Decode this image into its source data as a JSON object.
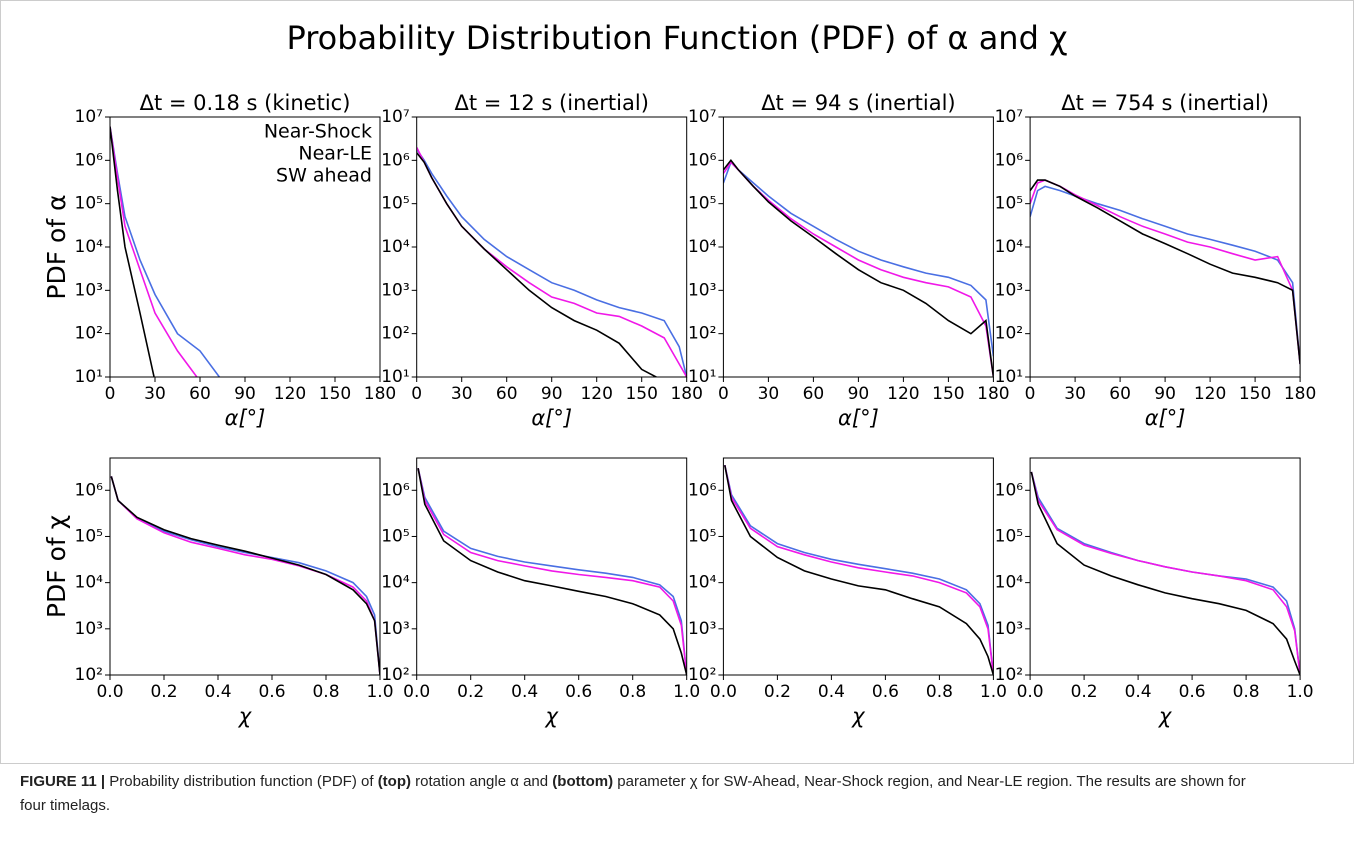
{
  "figure_title": "Probability Distribution Function (PDF) of α and χ",
  "caption": [
    {
      "text": "FIGURE 11 |",
      "bold": true
    },
    {
      "text": " Probability distribution function (PDF) of "
    },
    {
      "text": "(top)",
      "bold": true
    },
    {
      "text": " rotation angle α and "
    },
    {
      "text": "(bottom)",
      "bold": true
    },
    {
      "text": " parameter χ for SW-Ahead, Near-Shock region, and Near-LE region. The results are shown for four timelags."
    }
  ],
  "chart_data": [
    {
      "type": "line",
      "title": "Δt = 0.18 s (kinetic)",
      "xlabel": "α[°]",
      "ylabel": "PDF of α",
      "yscale": "log",
      "grid": false,
      "legend": "upper right",
      "x": [
        0,
        5,
        10,
        20,
        30,
        45,
        60,
        75,
        90,
        105,
        120,
        135,
        150,
        165,
        175,
        180
      ],
      "series": [
        {
          "name": "Near-Shock",
          "color": "#4a6fe3",
          "values": [
            6000000,
            500000,
            50000,
            5000,
            800,
            100,
            40,
            8,
            null,
            null,
            null,
            null,
            null,
            null,
            null,
            null
          ]
        },
        {
          "name": "Near-LE",
          "color": "#f018e8",
          "values": [
            6000000,
            400000,
            30000,
            3000,
            300,
            40,
            8,
            null,
            null,
            null,
            null,
            null,
            null,
            null,
            null,
            null
          ]
        },
        {
          "name": "SW ahead",
          "color": "#000000",
          "values": [
            6000000,
            200000,
            10000,
            300,
            8,
            null,
            null,
            null,
            null,
            null,
            null,
            null,
            null,
            null,
            null,
            null
          ]
        }
      ],
      "xlim": [
        0,
        180
      ],
      "xticks": [
        0,
        30,
        60,
        90,
        120,
        150,
        180
      ],
      "ylim": [
        10,
        10000000
      ],
      "yticks": [
        {
          "value": 10,
          "label": "10¹"
        },
        {
          "value": 100,
          "label": "10²"
        },
        {
          "value": 1000,
          "label": "10³"
        },
        {
          "value": 10000,
          "label": "10⁴"
        },
        {
          "value": 100000,
          "label": "10⁵"
        },
        {
          "value": 1000000,
          "label": "10⁶"
        },
        {
          "value": 10000000,
          "label": "10⁷"
        }
      ]
    },
    {
      "type": "line",
      "title": "Δt = 12 s (inertial)",
      "xlabel": "α[°]",
      "yscale": "log",
      "grid": false,
      "x": [
        0,
        5,
        10,
        20,
        30,
        45,
        60,
        75,
        90,
        105,
        120,
        135,
        150,
        165,
        175,
        180
      ],
      "series": [
        {
          "name": "Near-Shock",
          "color": "#4a6fe3",
          "values": [
            1800000,
            1000000,
            500000,
            150000,
            50000,
            15000,
            6000,
            3000,
            1500,
            1000,
            600,
            400,
            300,
            200,
            50,
            10
          ]
        },
        {
          "name": "Near-LE",
          "color": "#f018e8",
          "values": [
            2000000,
            900000,
            400000,
            100000,
            30000,
            9000,
            3500,
            1500,
            700,
            500,
            300,
            250,
            150,
            80,
            20,
            10
          ]
        },
        {
          "name": "SW ahead",
          "color": "#000000",
          "values": [
            1500000,
            900000,
            400000,
            100000,
            30000,
            9000,
            3000,
            1000,
            400,
            200,
            120,
            60,
            15,
            8,
            null,
            null
          ]
        }
      ],
      "xlim": [
        0,
        180
      ],
      "xticks": [
        0,
        30,
        60,
        90,
        120,
        150,
        180
      ],
      "ylim": [
        10,
        10000000
      ],
      "yticks": [
        {
          "value": 10,
          "label": "10¹"
        },
        {
          "value": 100,
          "label": "10²"
        },
        {
          "value": 1000,
          "label": "10³"
        },
        {
          "value": 10000,
          "label": "10⁴"
        },
        {
          "value": 100000,
          "label": "10⁵"
        },
        {
          "value": 1000000,
          "label": "10⁶"
        },
        {
          "value": 10000000,
          "label": "10⁷"
        }
      ]
    },
    {
      "type": "line",
      "title": "Δt = 94 s (inertial)",
      "xlabel": "α[°]",
      "yscale": "log",
      "grid": false,
      "x": [
        0,
        5,
        10,
        20,
        30,
        45,
        60,
        75,
        90,
        105,
        120,
        135,
        150,
        165,
        175,
        180
      ],
      "series": [
        {
          "name": "Near-Shock",
          "color": "#4a6fe3",
          "values": [
            300000,
            900000,
            600000,
            300000,
            150000,
            60000,
            30000,
            15000,
            8000,
            5000,
            3500,
            2500,
            2000,
            1300,
            600,
            30
          ]
        },
        {
          "name": "Near-LE",
          "color": "#f018e8",
          "values": [
            500000,
            900000,
            600000,
            250000,
            120000,
            45000,
            20000,
            10000,
            5000,
            3000,
            2000,
            1500,
            1200,
            700,
            150,
            10
          ]
        },
        {
          "name": "SW ahead",
          "color": "#000000",
          "values": [
            600000,
            1000000,
            600000,
            250000,
            110000,
            40000,
            17000,
            7000,
            3000,
            1500,
            1000,
            500,
            200,
            100,
            200,
            10
          ]
        }
      ],
      "xlim": [
        0,
        180
      ],
      "xticks": [
        0,
        30,
        60,
        90,
        120,
        150,
        180
      ],
      "ylim": [
        10,
        10000000
      ],
      "yticks": [
        {
          "value": 10,
          "label": "10¹"
        },
        {
          "value": 100,
          "label": "10²"
        },
        {
          "value": 1000,
          "label": "10³"
        },
        {
          "value": 10000,
          "label": "10⁴"
        },
        {
          "value": 100000,
          "label": "10⁵"
        },
        {
          "value": 1000000,
          "label": "10⁶"
        },
        {
          "value": 10000000,
          "label": "10⁷"
        }
      ]
    },
    {
      "type": "line",
      "title": "Δt = 754 s (inertial)",
      "xlabel": "α[°]",
      "yscale": "log",
      "grid": false,
      "x": [
        0,
        5,
        10,
        20,
        30,
        45,
        60,
        75,
        90,
        105,
        120,
        135,
        150,
        165,
        175,
        180
      ],
      "series": [
        {
          "name": "Near-Shock",
          "color": "#4a6fe3",
          "values": [
            50000,
            200000,
            250000,
            200000,
            150000,
            100000,
            70000,
            45000,
            30000,
            20000,
            15000,
            11000,
            8000,
            5000,
            1500,
            20
          ]
        },
        {
          "name": "Near-LE",
          "color": "#f018e8",
          "values": [
            100000,
            300000,
            350000,
            250000,
            160000,
            90000,
            50000,
            30000,
            20000,
            13000,
            10000,
            7000,
            5000,
            6000,
            1000,
            20
          ]
        },
        {
          "name": "SW ahead",
          "color": "#000000",
          "values": [
            200000,
            350000,
            350000,
            250000,
            150000,
            80000,
            40000,
            20000,
            12000,
            7000,
            4000,
            2500,
            2000,
            1500,
            1000,
            20
          ]
        }
      ],
      "xlim": [
        0,
        180
      ],
      "xticks": [
        0,
        30,
        60,
        90,
        120,
        150,
        180
      ],
      "ylim": [
        10,
        10000000
      ],
      "yticks": [
        {
          "value": 10,
          "label": "10¹"
        },
        {
          "value": 100,
          "label": "10²"
        },
        {
          "value": 1000,
          "label": "10³"
        },
        {
          "value": 10000,
          "label": "10⁴"
        },
        {
          "value": 100000,
          "label": "10⁵"
        },
        {
          "value": 1000000,
          "label": "10⁶"
        },
        {
          "value": 10000000,
          "label": "10⁷"
        }
      ]
    },
    {
      "type": "line",
      "xlabel": "χ",
      "ylabel": "PDF of χ",
      "yscale": "log",
      "grid": false,
      "x": [
        0.005,
        0.03,
        0.1,
        0.2,
        0.3,
        0.4,
        0.5,
        0.6,
        0.7,
        0.8,
        0.9,
        0.95,
        0.98,
        1.0
      ],
      "series": [
        {
          "name": "Near-Shock",
          "color": "#4a6fe3",
          "values": [
            2000000,
            600000,
            250000,
            130000,
            85000,
            60000,
            45000,
            35000,
            27000,
            18000,
            10000,
            5000,
            2000,
            100
          ]
        },
        {
          "name": "Near-LE",
          "color": "#f018e8",
          "values": [
            2000000,
            600000,
            240000,
            120000,
            75000,
            55000,
            40000,
            32000,
            23000,
            15000,
            8000,
            4000,
            1500,
            100
          ]
        },
        {
          "name": "SW ahead",
          "color": "#000000",
          "values": [
            2000000,
            600000,
            260000,
            140000,
            90000,
            65000,
            48000,
            34000,
            24000,
            15000,
            7000,
            3500,
            1500,
            100
          ]
        }
      ],
      "xlim": [
        0,
        1
      ],
      "xticks": [
        {
          "value": 0,
          "label": "0.0"
        },
        0.2,
        0.4,
        0.6,
        0.8,
        {
          "value": 1,
          "label": "1.0"
        }
      ],
      "ylim": [
        100,
        5000000
      ],
      "yticks": [
        {
          "value": 100,
          "label": "10²"
        },
        {
          "value": 1000,
          "label": "10³"
        },
        {
          "value": 10000,
          "label": "10⁴"
        },
        {
          "value": 100000,
          "label": "10⁵"
        },
        {
          "value": 1000000,
          "label": "10⁶"
        }
      ]
    },
    {
      "type": "line",
      "xlabel": "χ",
      "yscale": "log",
      "grid": false,
      "x": [
        0.005,
        0.03,
        0.1,
        0.2,
        0.3,
        0.4,
        0.5,
        0.6,
        0.7,
        0.8,
        0.9,
        0.95,
        0.98,
        1.0
      ],
      "series": [
        {
          "name": "Near-Shock",
          "color": "#4a6fe3",
          "values": [
            3000000,
            700000,
            130000,
            55000,
            37000,
            28000,
            23000,
            19000,
            16000,
            13000,
            9000,
            5000,
            1500,
            100
          ]
        },
        {
          "name": "Near-LE",
          "color": "#f018e8",
          "values": [
            3000000,
            600000,
            110000,
            45000,
            30000,
            23000,
            18000,
            15000,
            13000,
            11000,
            8000,
            4000,
            1200,
            100
          ]
        },
        {
          "name": "SW ahead",
          "color": "#000000",
          "values": [
            3000000,
            500000,
            80000,
            30000,
            17000,
            11000,
            8500,
            6500,
            5000,
            3500,
            2000,
            1000,
            300,
            100
          ]
        }
      ],
      "xlim": [
        0,
        1
      ],
      "xticks": [
        {
          "value": 0,
          "label": "0.0"
        },
        0.2,
        0.4,
        0.6,
        0.8,
        {
          "value": 1,
          "label": "1.0"
        }
      ],
      "ylim": [
        100,
        5000000
      ],
      "yticks": [
        {
          "value": 100,
          "label": "10²"
        },
        {
          "value": 1000,
          "label": "10³"
        },
        {
          "value": 10000,
          "label": "10⁴"
        },
        {
          "value": 100000,
          "label": "10⁵"
        },
        {
          "value": 1000000,
          "label": "10⁶"
        }
      ]
    },
    {
      "type": "line",
      "xlabel": "χ",
      "yscale": "log",
      "grid": false,
      "x": [
        0.005,
        0.03,
        0.1,
        0.2,
        0.3,
        0.4,
        0.5,
        0.6,
        0.7,
        0.8,
        0.9,
        0.95,
        0.98,
        1.0
      ],
      "series": [
        {
          "name": "Near-Shock",
          "color": "#4a6fe3",
          "values": [
            3500000,
            800000,
            170000,
            70000,
            45000,
            32000,
            25000,
            20000,
            16000,
            12000,
            7000,
            3500,
            1200,
            100
          ]
        },
        {
          "name": "Near-LE",
          "color": "#f018e8",
          "values": [
            3500000,
            700000,
            150000,
            60000,
            40000,
            28000,
            21000,
            17000,
            14000,
            10000,
            6000,
            3000,
            1000,
            100
          ]
        },
        {
          "name": "SW ahead",
          "color": "#000000",
          "values": [
            3500000,
            600000,
            100000,
            35000,
            18000,
            12000,
            8500,
            7000,
            4500,
            3000,
            1300,
            600,
            250,
            100
          ]
        }
      ],
      "xlim": [
        0,
        1
      ],
      "xticks": [
        {
          "value": 0,
          "label": "0.0"
        },
        0.2,
        0.4,
        0.6,
        0.8,
        {
          "value": 1,
          "label": "1.0"
        }
      ],
      "ylim": [
        100,
        5000000
      ],
      "yticks": [
        {
          "value": 100,
          "label": "10²"
        },
        {
          "value": 1000,
          "label": "10³"
        },
        {
          "value": 10000,
          "label": "10⁴"
        },
        {
          "value": 100000,
          "label": "10⁵"
        },
        {
          "value": 1000000,
          "label": "10⁶"
        }
      ]
    },
    {
      "type": "line",
      "xlabel": "χ",
      "yscale": "log",
      "grid": false,
      "x": [
        0.005,
        0.03,
        0.1,
        0.2,
        0.3,
        0.4,
        0.5,
        0.6,
        0.7,
        0.8,
        0.9,
        0.95,
        0.98,
        1.0
      ],
      "series": [
        {
          "name": "Near-Shock",
          "color": "#4a6fe3",
          "values": [
            2500000,
            700000,
            150000,
            70000,
            45000,
            30000,
            22000,
            17000,
            14000,
            12000,
            8000,
            4000,
            1000,
            100
          ]
        },
        {
          "name": "Near-LE",
          "color": "#f018e8",
          "values": [
            2500000,
            600000,
            140000,
            65000,
            43000,
            30000,
            22000,
            17000,
            14000,
            11000,
            7000,
            3000,
            900,
            100
          ]
        },
        {
          "name": "SW ahead",
          "color": "#000000",
          "values": [
            2500000,
            500000,
            70000,
            24000,
            14000,
            9000,
            6000,
            4500,
            3500,
            2500,
            1300,
            600,
            200,
            100
          ]
        }
      ],
      "xlim": [
        0,
        1
      ],
      "xticks": [
        {
          "value": 0,
          "label": "0.0"
        },
        0.2,
        0.4,
        0.6,
        0.8,
        {
          "value": 1,
          "label": "1.0"
        }
      ],
      "ylim": [
        100,
        5000000
      ],
      "yticks": [
        {
          "value": 100,
          "label": "10²"
        },
        {
          "value": 1000,
          "label": "10³"
        },
        {
          "value": 10000,
          "label": "10⁴"
        },
        {
          "value": 100000,
          "label": "10⁵"
        },
        {
          "value": 1000000,
          "label": "10⁶"
        }
      ]
    }
  ]
}
